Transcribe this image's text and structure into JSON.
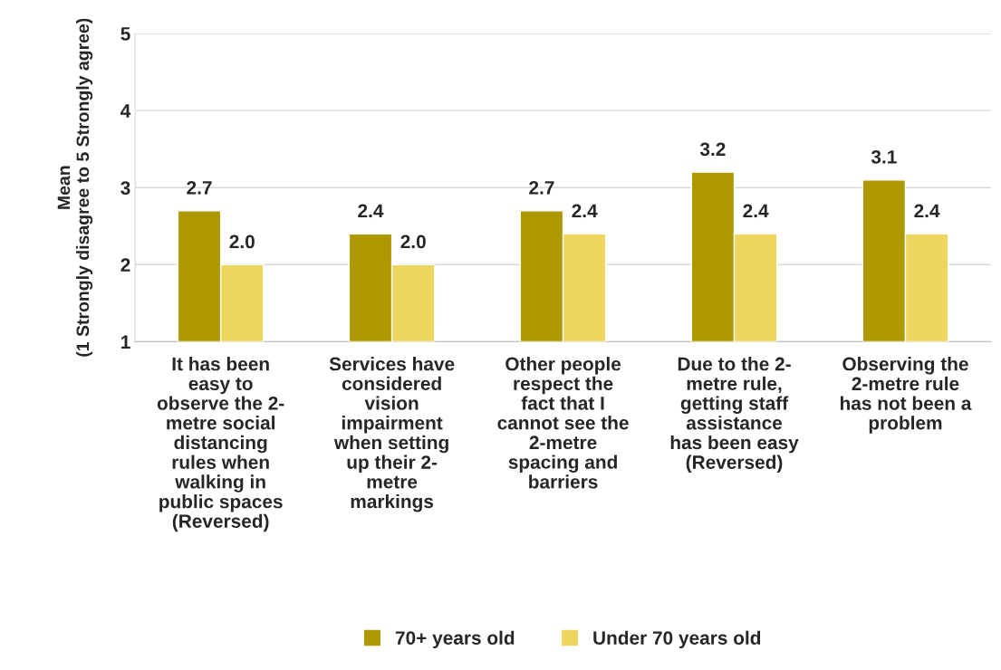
{
  "chart_data": {
    "type": "bar",
    "ylabel": "Mean\n(1 Strongly disagree to 5 Strongly agree)",
    "categories": [
      "It has been\neasy to\nobserve the 2-\nmetre social\ndistancing\nrules when\nwalking in\npublic spaces\n(Reversed)",
      "Services have\nconsidered\nvision\nimpairment\nwhen setting\nup their 2-\nmetre\nmarkings",
      "Other people\nrespect the\nfact that I\ncannot see the\n2-metre\nspacing and\nbarriers",
      "Due to the 2-\nmetre rule,\ngetting staff\nassistance\nhas been easy\n(Reversed)",
      "Observing the\n2-metre rule\nhas not been a\nproblem"
    ],
    "series": [
      {
        "name": "70+ years old",
        "color": "#ae9800",
        "values": [
          2.7,
          2.4,
          2.7,
          3.2,
          3.1
        ],
        "value_labels": [
          "2.7",
          "2.4",
          "2.7",
          "3.2",
          "3.1"
        ]
      },
      {
        "name": "Under 70 years old",
        "color": "#ecd660",
        "values": [
          2.0,
          2.0,
          2.4,
          2.4,
          2.4
        ],
        "value_labels": [
          "2.0",
          "2.0",
          "2.4",
          "2.4",
          "2.4"
        ]
      }
    ],
    "ylim": [
      1,
      5
    ],
    "yticks": [
      1,
      2,
      3,
      4,
      5
    ],
    "grid": "y",
    "legend": "bottom"
  }
}
